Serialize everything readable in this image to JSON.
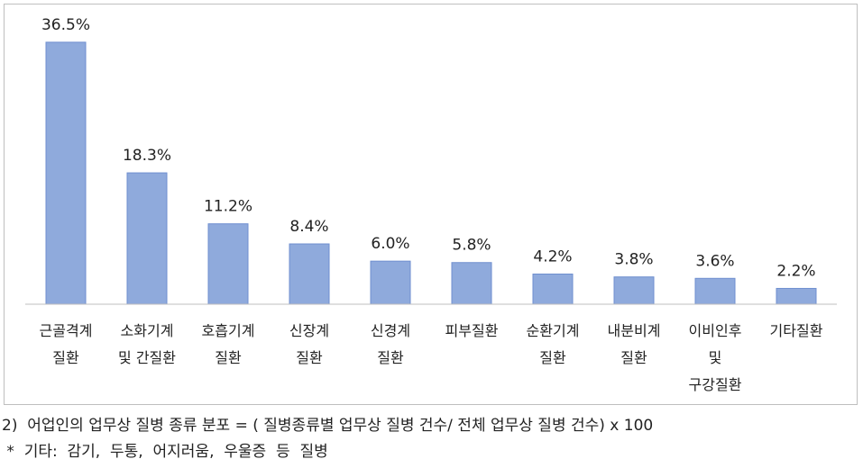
{
  "chart_data": {
    "type": "bar",
    "categories": [
      "근골격계\n질환",
      "소화기계\n및 간질환",
      "호흡기계\n질환",
      "신장계\n질환",
      "신경계\n질환",
      "피부질환",
      "순환기계\n질환",
      "내분비계\n질환",
      "이비인후\n및\n구강질환",
      "기타질환"
    ],
    "values": [
      36.5,
      18.3,
      11.2,
      8.4,
      6.0,
      5.8,
      4.2,
      3.8,
      3.6,
      2.2
    ],
    "value_labels": [
      "36.5%",
      "18.3%",
      "11.2%",
      "8.4%",
      "6.0%",
      "5.8%",
      "4.2%",
      "3.8%",
      "3.6%",
      "2.2%"
    ],
    "color": "#8faadc",
    "ylim": [
      0,
      40
    ]
  },
  "notes": [
    "2)  어업인의 업무상 질병 종류 분포 = ( 질병종류별 업무상 질병 건수/ 전체 업무상 질병 건수) x 100",
    " *  기타:  감기,  두통,  어지러움,  우울증  등  질병"
  ]
}
